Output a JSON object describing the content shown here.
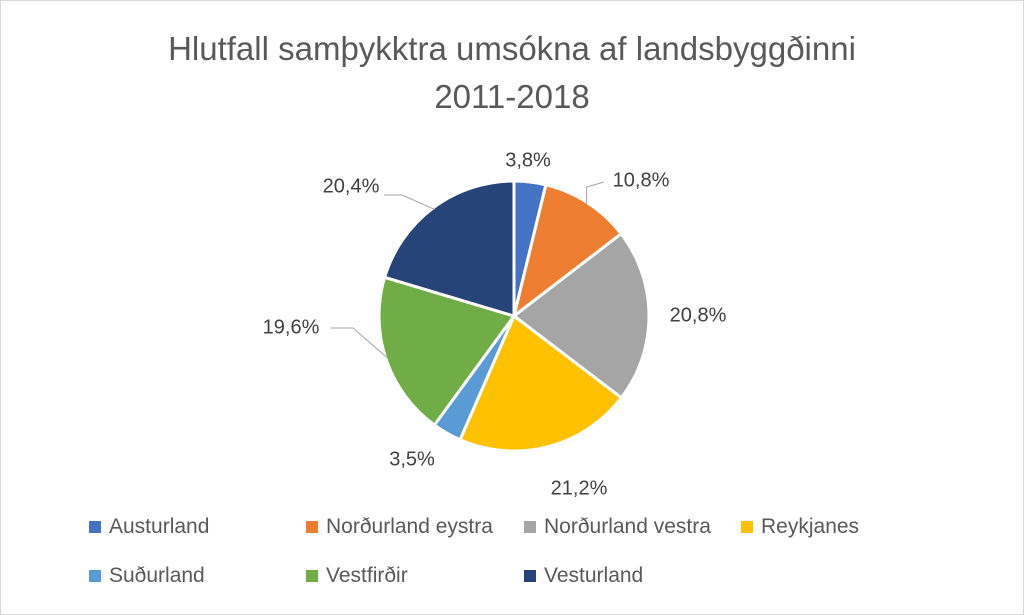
{
  "chart_data": {
    "type": "pie",
    "title": "Hlutfall samþykktra umsókna af landsbyggðinni",
    "subtitle": "2011-2018",
    "legend_position": "bottom",
    "slices": [
      {
        "label": "Austurland",
        "value": 3.8,
        "display": "3,8%",
        "color": "#4472C4"
      },
      {
        "label": "Norðurland eystra",
        "value": 10.8,
        "display": "10,8%",
        "color": "#ED7D31"
      },
      {
        "label": "Norðurland vestra",
        "value": 20.8,
        "display": "20,8%",
        "color": "#A5A5A5"
      },
      {
        "label": "Reykjanes",
        "value": 21.2,
        "display": "21,2%",
        "color": "#FFC000"
      },
      {
        "label": "Suðurland",
        "value": 3.5,
        "display": "3,5%",
        "color": "#5B9BD5"
      },
      {
        "label": "Vestfirðir",
        "value": 19.6,
        "display": "19,6%",
        "color": "#70AD47"
      },
      {
        "label": "Vesturland",
        "value": 20.4,
        "display": "20,4%",
        "color": "#264478"
      }
    ]
  }
}
